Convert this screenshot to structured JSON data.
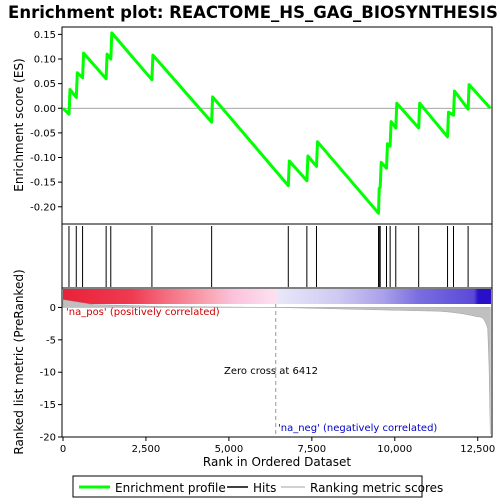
{
  "chart_data": {
    "type": "line",
    "title": "Enrichment plot: REACTOME_HS_GAG_BIOSYNTHESIS",
    "xlabel": "Rank in Ordered Dataset",
    "ylabel_top": "Enrichment score (ES)",
    "ylabel_bottom": "Ranked list metric (PreRanked)",
    "xlim": [
      0,
      12900
    ],
    "ylim_top": [
      -0.235,
      0.165
    ],
    "ylim_bottom": [
      -20,
      3
    ],
    "x_ticks": [
      0,
      2500,
      5000,
      7500,
      10000,
      12500
    ],
    "x_tick_labels": [
      "0",
      "2,500",
      "5,000",
      "7,500",
      "10,000",
      "12,500"
    ],
    "y_ticks_top": [
      0.15,
      0.1,
      0.05,
      0.0,
      -0.05,
      -0.1,
      -0.15,
      -0.2
    ],
    "y_tick_labels_top": [
      "0.15",
      "0.10",
      "0.05",
      "0.00",
      "-0.05",
      "-0.10",
      "-0.15",
      "-0.20"
    ],
    "y_ticks_bottom": [
      0,
      -5,
      -10,
      -15,
      -20
    ],
    "y_tick_labels_bottom": [
      "0",
      "-5",
      "-10",
      "-15",
      "-20"
    ],
    "grid": false,
    "series": [
      {
        "name": "Enrichment profile",
        "color": "#00ff00",
        "x": [
          0,
          180,
          210,
          400,
          430,
          590,
          620,
          1300,
          1330,
          1440,
          1470,
          2680,
          2710,
          4480,
          4510,
          6790,
          6820,
          7350,
          7380,
          7640,
          7670,
          9510,
          9530,
          9560,
          9590,
          9750,
          9780,
          9860,
          9890,
          10030,
          10060,
          10720,
          10750,
          11590,
          11620,
          11770,
          11800,
          12210,
          12240,
          12880
        ],
        "y": [
          0.0,
          -0.012,
          0.038,
          0.022,
          0.072,
          0.062,
          0.112,
          0.06,
          0.11,
          0.1,
          0.153,
          0.058,
          0.108,
          -0.028,
          0.023,
          -0.157,
          -0.107,
          -0.147,
          -0.097,
          -0.118,
          -0.068,
          -0.213,
          -0.163,
          -0.16,
          -0.11,
          -0.122,
          -0.072,
          -0.077,
          -0.027,
          -0.04,
          0.01,
          -0.04,
          0.01,
          -0.058,
          -0.008,
          -0.014,
          0.035,
          -0.002,
          0.048,
          0.0
        ]
      }
    ],
    "hits": [
      180,
      400,
      590,
      1300,
      1440,
      2680,
      4480,
      6790,
      7350,
      7640,
      9510,
      9530,
      9560,
      9750,
      9860,
      10030,
      10720,
      11590,
      11770,
      12210
    ],
    "zero_cross_rank": 6412,
    "zero_cross_label": "Zero cross at 6412",
    "pos_label": "'na_pos' (positively correlated)",
    "neg_label": "'na_neg' (negatively correlated)",
    "legend": {
      "placement": "bottom",
      "items": [
        {
          "label": "Enrichment profile",
          "color": "#00ff00"
        },
        {
          "label": "Hits",
          "color": "#000000"
        },
        {
          "label": "Ranking metric scores",
          "color": "#c0c0c0"
        }
      ]
    },
    "colors": {
      "profile": "#00ff00",
      "pos_text": "#cc0000",
      "neg_text": "#0000cc",
      "metric": "#c0c0c0"
    }
  }
}
